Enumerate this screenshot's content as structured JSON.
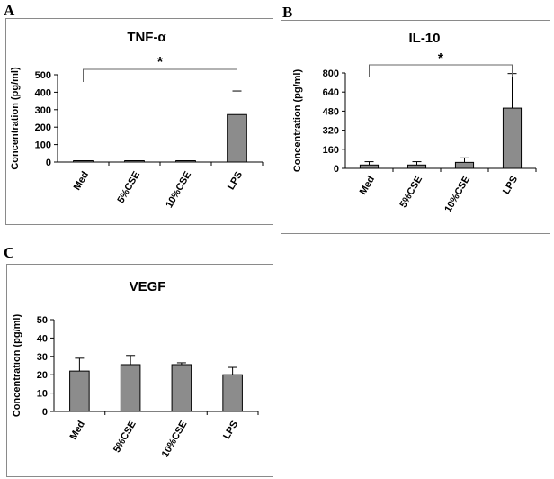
{
  "panel_labels": [
    "A",
    "B",
    "C"
  ],
  "chart_data": [
    {
      "type": "bar",
      "title": "TNF-α",
      "xlabel": "",
      "ylabel": "Concentration (pg/ml)",
      "ylim": [
        0,
        500
      ],
      "yticks": [
        0,
        100,
        200,
        300,
        400,
        500
      ],
      "categories": [
        "Med",
        "5%CSE",
        "10%CSE",
        "LPS"
      ],
      "values": [
        2,
        3,
        2,
        272
      ],
      "errors": [
        1,
        3,
        1,
        135
      ],
      "significance": {
        "from": "Med",
        "to": "LPS",
        "label": "*"
      },
      "bar_color": "#8c8c8c"
    },
    {
      "type": "bar",
      "title": "IL-10",
      "xlabel": "",
      "ylabel": "Concentration (pg/ml)",
      "ylim": [
        0,
        800
      ],
      "yticks": [
        0,
        160,
        320,
        480,
        640,
        800
      ],
      "categories": [
        "Med",
        "5%CSE",
        "10%CSE",
        "LPS"
      ],
      "values": [
        28,
        28,
        50,
        505
      ],
      "errors": [
        28,
        28,
        38,
        290
      ],
      "significance": {
        "from": "Med",
        "to": "LPS",
        "label": "*"
      },
      "bar_color": "#8c8c8c"
    },
    {
      "type": "bar",
      "title": "VEGF",
      "xlabel": "",
      "ylabel": "Concentration (pg/ml)",
      "ylim": [
        0,
        50
      ],
      "yticks": [
        0,
        10,
        20,
        30,
        40,
        50
      ],
      "categories": [
        "Med",
        "5%CSE",
        "10%CSE",
        "LPS"
      ],
      "values": [
        22,
        25.5,
        25.5,
        20
      ],
      "errors": [
        7,
        5,
        1,
        4
      ],
      "significance": null,
      "bar_color": "#8c8c8c"
    }
  ]
}
